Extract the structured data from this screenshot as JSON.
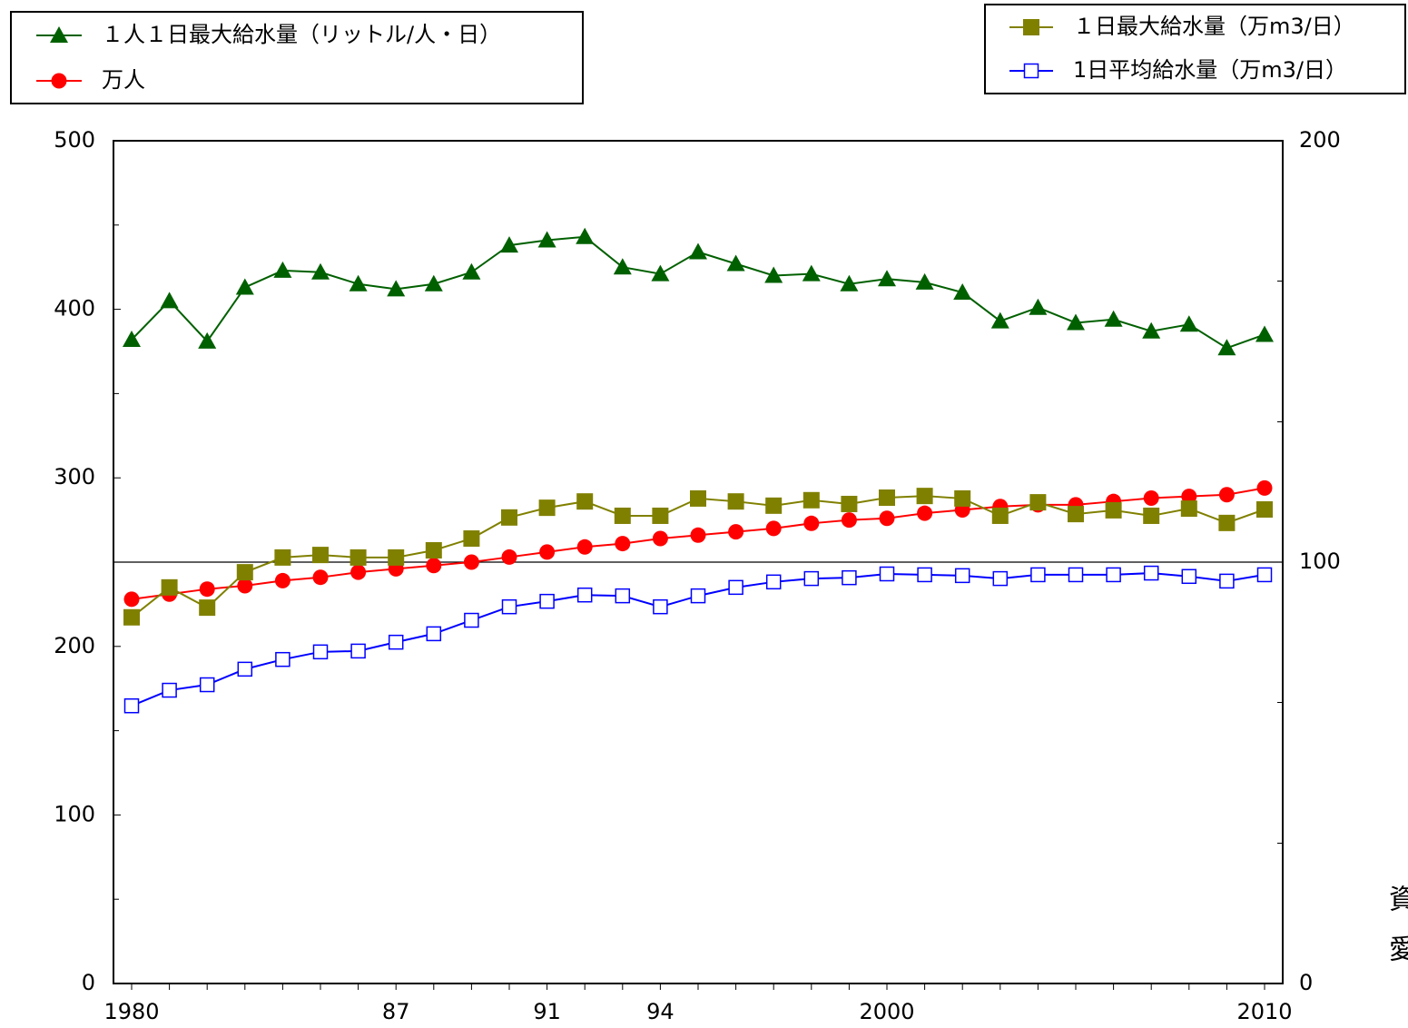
{
  "chart_data": {
    "type": "line",
    "categories": [
      "1980",
      null,
      null,
      null,
      null,
      null,
      null,
      "87",
      null,
      null,
      null,
      "91",
      null,
      null,
      "94",
      null,
      null,
      null,
      null,
      null,
      "2000",
      null,
      null,
      null,
      null,
      null,
      null,
      null,
      null,
      null,
      "2010"
    ],
    "ylim": [
      0,
      500
    ],
    "yticks": [
      0,
      100,
      200,
      300,
      400,
      500
    ],
    "yminor": [
      50,
      150,
      250,
      350,
      450
    ],
    "y2lim": [
      0,
      200
    ],
    "y2ticks": [
      0,
      100,
      200
    ],
    "y2minor": [
      33.3,
      66.7,
      133.3,
      166.7
    ],
    "y2_reference_line": 100,
    "series": [
      {
        "name": "１人１日最大給水量（リットル/人・日）",
        "color": "#006000",
        "marker": "triangle",
        "legend": "upper-left",
        "values": [
          382,
          405,
          381,
          413,
          423,
          422,
          415,
          412,
          415,
          422,
          438,
          441,
          443,
          425,
          421,
          434,
          427,
          420,
          421,
          415,
          418,
          416,
          410,
          393,
          401,
          392,
          394,
          387,
          391,
          377,
          385
        ]
      },
      {
        "name": "万人",
        "color": "#ff0000",
        "marker": "circle",
        "legend": "upper-left",
        "values": [
          228,
          231,
          234,
          236,
          239,
          241,
          244,
          246,
          248,
          250,
          253,
          256,
          259,
          261,
          264,
          266,
          268,
          270,
          273,
          275,
          276,
          279,
          281,
          283,
          284,
          284,
          286,
          288,
          289,
          290,
          294
        ]
      },
      {
        "name": "１日最大給水量（万m3/日）",
        "color": "#808000",
        "marker": "square",
        "legend": "upper-right",
        "axis": "y2",
        "values": [
          86.9,
          94.0,
          89.2,
          97.6,
          101.1,
          101.7,
          101.1,
          101.1,
          102.8,
          105.6,
          110.6,
          112.9,
          114.4,
          111.0,
          111.0,
          115.1,
          114.4,
          113.4,
          114.7,
          113.8,
          115.3,
          115.7,
          115.1,
          111.0,
          114.2,
          111.4,
          112.3,
          111.0,
          112.7,
          109.3,
          112.5
        ]
      },
      {
        "name": "1日平均給水量（万m3/日）",
        "color": "#0000ff",
        "marker": "open-square",
        "legend": "upper-right",
        "axis": "y2",
        "values": [
          65.9,
          69.6,
          70.9,
          74.6,
          76.9,
          78.7,
          78.9,
          81.0,
          83.0,
          86.2,
          89.4,
          90.7,
          92.2,
          92.0,
          89.4,
          92.0,
          94.0,
          95.3,
          96.1,
          96.3,
          97.2,
          97.0,
          96.8,
          96.1,
          97.0,
          97.0,
          97.0,
          97.4,
          96.6,
          95.5,
          97.0
        ]
      }
    ],
    "side_notes": [
      "資",
      "愛"
    ]
  }
}
